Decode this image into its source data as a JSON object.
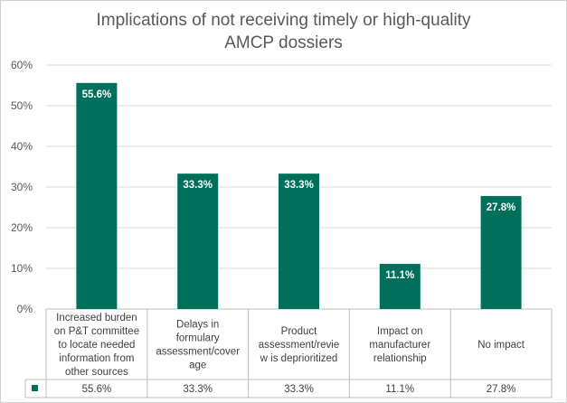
{
  "chart_data": {
    "type": "bar",
    "title_lines": [
      "Implications of not receiving timely or high-quality",
      "AMCP dossiers"
    ],
    "categories": [
      "Increased burden on P&T committee to locate needed information from other sources",
      "Delays in formulary assessment/coverage",
      "Product assessment/review is deprioritized",
      "Impact on manufacturer relationship",
      "No impact"
    ],
    "category_lines": [
      [
        "Increased burden",
        "on P&T committee",
        "to locate needed",
        "information from",
        "other sources"
      ],
      [
        "Delays in",
        "formulary",
        "assessment/cover",
        "age"
      ],
      [
        "Product",
        "assessment/revie",
        "w is deprioritized"
      ],
      [
        "Impact on",
        "manufacturer",
        "relationship"
      ],
      [
        "No impact"
      ]
    ],
    "values": [
      55.6,
      33.3,
      33.3,
      11.1,
      27.8
    ],
    "data_labels": [
      "55.6%",
      "33.3%",
      "33.3%",
      "11.1%",
      "27.8%"
    ],
    "y_ticks": [
      "0%",
      "10%",
      "20%",
      "30%",
      "40%",
      "50%",
      "60%"
    ],
    "ylim": [
      0,
      60
    ],
    "grid": true,
    "legend": "data-table",
    "bar_color": "#00705c"
  }
}
